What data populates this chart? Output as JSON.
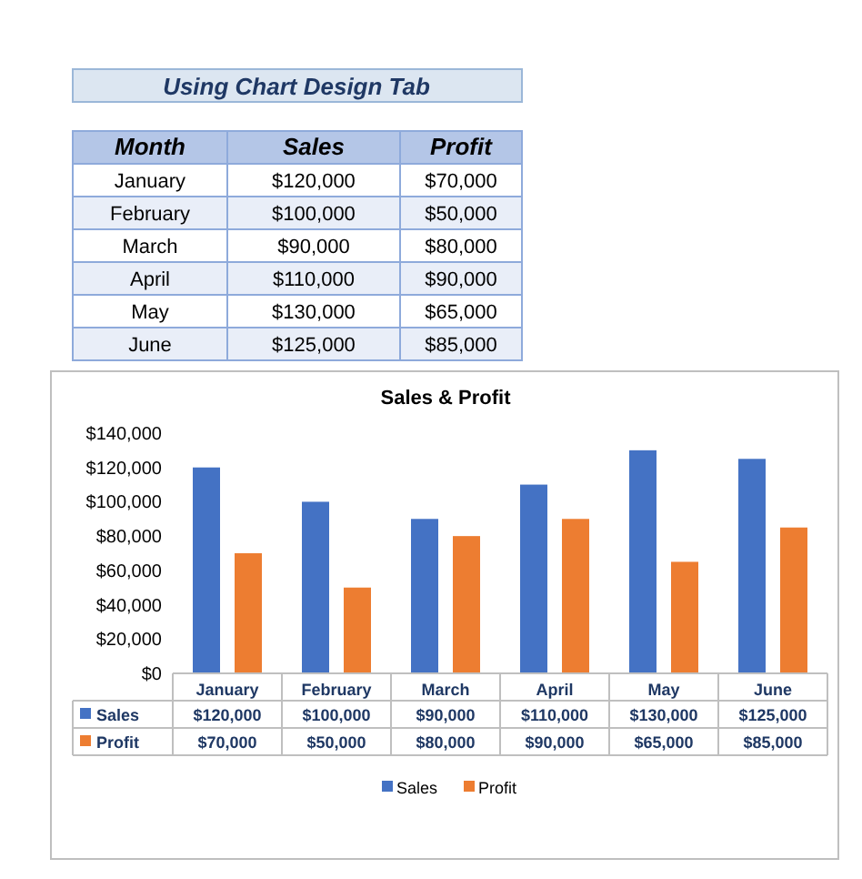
{
  "chart_data": [
    {
      "type": "other",
      "title": "Using Chart Design Tab",
      "annotations": [
        "Month",
        "Sales",
        "Profit",
        "January",
        "$120,000",
        "$70,000",
        "February",
        "$100,000",
        "$50,000",
        "March",
        "$90,000",
        "$80,000",
        "April",
        "$110,000",
        "$90,000",
        "May",
        "$130,000",
        "$65,000",
        "June",
        "$125,000",
        "$85,000"
      ]
    },
    {
      "type": "bar",
      "title": "Sales & Profit",
      "categories": [
        "January",
        "February",
        "March",
        "April",
        "May",
        "June"
      ],
      "series": [
        {
          "name": "Sales",
          "color": "#4472c4",
          "values": [
            120000,
            100000,
            90000,
            110000,
            130000,
            125000
          ],
          "value_labels": [
            "$120,000",
            "$100,000",
            "$90,000",
            "$110,000",
            "$130,000",
            "$125,000"
          ]
        },
        {
          "name": "Profit",
          "color": "#ed7d31",
          "values": [
            70000,
            50000,
            80000,
            90000,
            65000,
            85000
          ],
          "value_labels": [
            "$70,000",
            "$50,000",
            "$80,000",
            "$90,000",
            "$65,000",
            "$85,000"
          ]
        }
      ],
      "ylim": [
        0,
        140000
      ],
      "yticks": [
        {
          "value": 0,
          "label": "$0"
        },
        {
          "value": 20000,
          "label": "$20,000"
        },
        {
          "value": 40000,
          "label": "$40,000"
        },
        {
          "value": 60000,
          "label": "$60,000"
        },
        {
          "value": 80000,
          "label": "$80,000"
        },
        {
          "value": 100000,
          "label": "$100,000"
        },
        {
          "value": 120000,
          "label": "$120,000"
        },
        {
          "value": 140000,
          "label": "$140,000"
        }
      ],
      "grid": false,
      "legend": "bottom"
    }
  ]
}
